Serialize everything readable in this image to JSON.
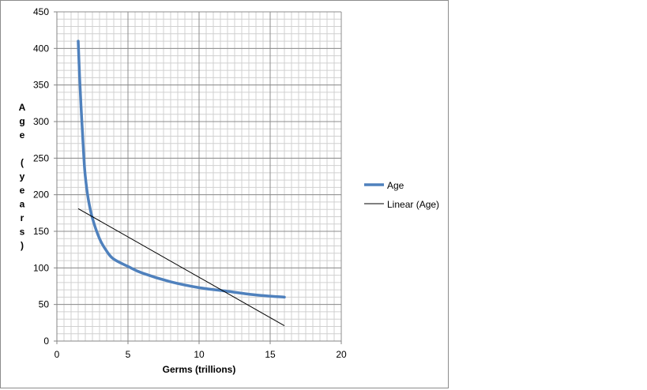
{
  "chart_data": {
    "type": "line",
    "xlabel": "Germs (trillions)",
    "ylabel": "Age (years)",
    "xlim": [
      0,
      20
    ],
    "ylim": [
      0,
      450
    ],
    "x_ticks": [
      0,
      5,
      10,
      15,
      20
    ],
    "y_ticks": [
      0,
      50,
      100,
      150,
      200,
      250,
      300,
      350,
      400,
      450
    ],
    "grid": true,
    "legend_position": "right",
    "series": [
      {
        "name": "Age",
        "style": "curve",
        "color": "#4f81bd",
        "x": [
          1.5,
          1.6,
          1.7,
          1.8,
          1.9,
          2.0,
          2.2,
          2.5,
          3.0,
          3.5,
          4.0,
          5.0,
          6.0,
          8.0,
          10.0,
          12.0,
          14.0,
          16.0
        ],
        "values": [
          410,
          360,
          320,
          285,
          250,
          225,
          195,
          168,
          140,
          123,
          112,
          102,
          93,
          81,
          73,
          68,
          63,
          60
        ]
      },
      {
        "name": "Linear (Age)",
        "style": "trendline",
        "color": "#000000",
        "x": [
          1.5,
          16.0
        ],
        "values": [
          181,
          21
        ]
      }
    ]
  }
}
